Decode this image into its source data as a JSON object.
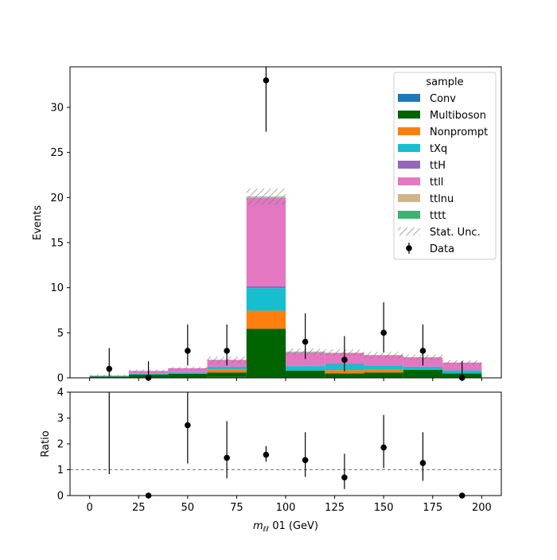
{
  "chart_data": [
    {
      "type": "bar",
      "subtype": "stacked-histogram",
      "ylabel": "Events",
      "xlim": [
        -10,
        210
      ],
      "ylim": [
        0,
        34.5
      ],
      "yticks": [
        0,
        5,
        10,
        15,
        20,
        25,
        30
      ],
      "bin_edges": [
        0,
        20,
        40,
        60,
        80,
        100,
        120,
        140,
        160,
        180,
        200
      ],
      "colors": {
        "Conv": "#1f77b4",
        "Multiboson": "#006400",
        "Nonprompt": "#ff7f0e",
        "tXq": "#17becf",
        "ttH": "#9467bd",
        "ttll": "#e377c2",
        "ttlnu": "#d2b48c",
        "tttt": "#3cb371"
      },
      "series": [
        {
          "name": "Conv",
          "values": [
            0.05,
            0.05,
            0.05,
            0.1,
            0.05,
            0.05,
            0.05,
            0.05,
            0.05,
            0.05
          ]
        },
        {
          "name": "Multiboson",
          "values": [
            0.1,
            0.3,
            0.4,
            0.5,
            5.4,
            0.75,
            0.45,
            0.55,
            0.85,
            0.45
          ]
        },
        {
          "name": "Nonprompt",
          "values": [
            0.0,
            0.0,
            0.0,
            0.35,
            2.0,
            0.0,
            0.35,
            0.3,
            0.0,
            0.0
          ]
        },
        {
          "name": "tXq",
          "values": [
            0.05,
            0.1,
            0.15,
            0.25,
            2.5,
            0.5,
            0.65,
            0.45,
            0.3,
            0.3
          ]
        },
        {
          "name": "ttH",
          "values": [
            0.0,
            0.02,
            0.02,
            0.05,
            0.2,
            0.05,
            0.05,
            0.05,
            0.05,
            0.05
          ]
        },
        {
          "name": "ttll",
          "values": [
            0.05,
            0.3,
            0.45,
            0.75,
            9.8,
            1.45,
            1.2,
            1.1,
            1.0,
            0.85
          ]
        },
        {
          "name": "ttlnu",
          "values": [
            0.0,
            0.0,
            0.0,
            0.0,
            0.1,
            0.05,
            0.05,
            0.05,
            0.05,
            0.0
          ]
        },
        {
          "name": "tttt",
          "values": [
            0.0,
            0.0,
            0.0,
            0.0,
            0.05,
            0.05,
            0.0,
            0.0,
            0.0,
            0.0
          ]
        }
      ],
      "stat_unc": [
        0.1,
        0.15,
        0.15,
        0.35,
        0.9,
        0.35,
        0.35,
        0.35,
        0.3,
        0.25
      ],
      "data": {
        "name": "Data",
        "x": [
          10,
          30,
          50,
          70,
          90,
          110,
          130,
          150,
          170,
          190
        ],
        "y": [
          1,
          0,
          3,
          3,
          33,
          4,
          2,
          5,
          3,
          0
        ],
        "yerr_low": [
          0.83,
          0,
          1.63,
          1.63,
          5.7,
          1.91,
          1.29,
          2.16,
          1.63,
          0
        ],
        "yerr_high": [
          2.3,
          1.84,
          2.92,
          2.92,
          6.8,
          3.16,
          2.63,
          3.38,
          2.92,
          1.84
        ]
      },
      "legend": {
        "title": "sample",
        "placement": "upper right",
        "entries": [
          "Conv",
          "Multiboson",
          "Nonprompt",
          "tXq",
          "ttH",
          "ttll",
          "ttlnu",
          "tttt",
          "Stat. Unc.",
          "Data"
        ]
      }
    },
    {
      "type": "scatter",
      "ylabel": "Ratio",
      "xlabel_main": "m",
      "xlabel_sub": "ℓℓ",
      "xlabel_rest": " 01 (GeV)",
      "xlim": [
        -10,
        210
      ],
      "ylim": [
        0,
        4
      ],
      "xticks": [
        0,
        25,
        50,
        75,
        100,
        125,
        150,
        175,
        200
      ],
      "yticks": [
        0,
        1,
        2,
        3,
        4
      ],
      "reference_line": 1,
      "x": [
        10,
        30,
        50,
        70,
        90,
        110,
        130,
        150,
        170,
        190
      ],
      "y": [
        null,
        0,
        2.72,
        1.46,
        1.58,
        1.37,
        0.7,
        1.86,
        1.26,
        0
      ],
      "yerr_low": [
        0.17,
        0,
        1.48,
        0.79,
        0.27,
        0.65,
        0.45,
        0.8,
        0.69,
        0
      ],
      "yerr_high": [
        4.5,
        0,
        1.5,
        1.42,
        0.33,
        1.08,
        0.92,
        1.26,
        1.19,
        0
      ]
    }
  ]
}
